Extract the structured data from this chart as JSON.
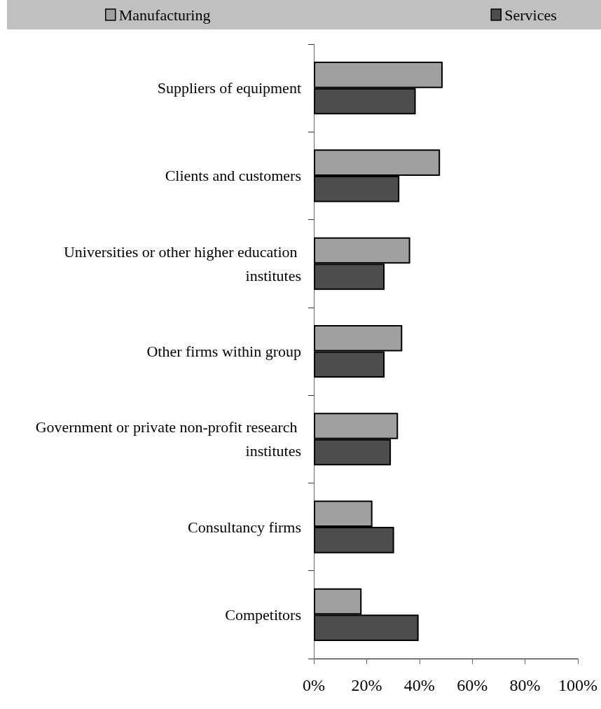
{
  "chart_data": {
    "type": "bar",
    "orientation": "horizontal",
    "categories": [
      "Suppliers of equipment",
      "Clients and customers",
      "Universities or other higher education institutes",
      "Other firms within group",
      "Government or private non-profit research institutes",
      "Consultancy firms",
      "Competitors"
    ],
    "series": [
      {
        "name": "Manufacturing",
        "color": "#a0a0a0",
        "values": [
          48.8,
          47.8,
          36.5,
          33.5,
          31.9,
          22.2,
          18.1
        ]
      },
      {
        "name": "Services",
        "color": "#4d4d4d",
        "values": [
          38.6,
          32.4,
          26.8,
          26.8,
          29.2,
          30.4,
          39.7
        ]
      }
    ],
    "xlim": [
      0,
      100
    ],
    "xticks": [
      {
        "value": 0,
        "label": "0%"
      },
      {
        "value": 20,
        "label": "20%"
      },
      {
        "value": 40,
        "label": "40%"
      },
      {
        "value": 60,
        "label": "60%"
      },
      {
        "value": 80,
        "label": "80%"
      },
      {
        "value": 100,
        "label": "100%"
      }
    ],
    "grid": false,
    "legend": "top"
  }
}
